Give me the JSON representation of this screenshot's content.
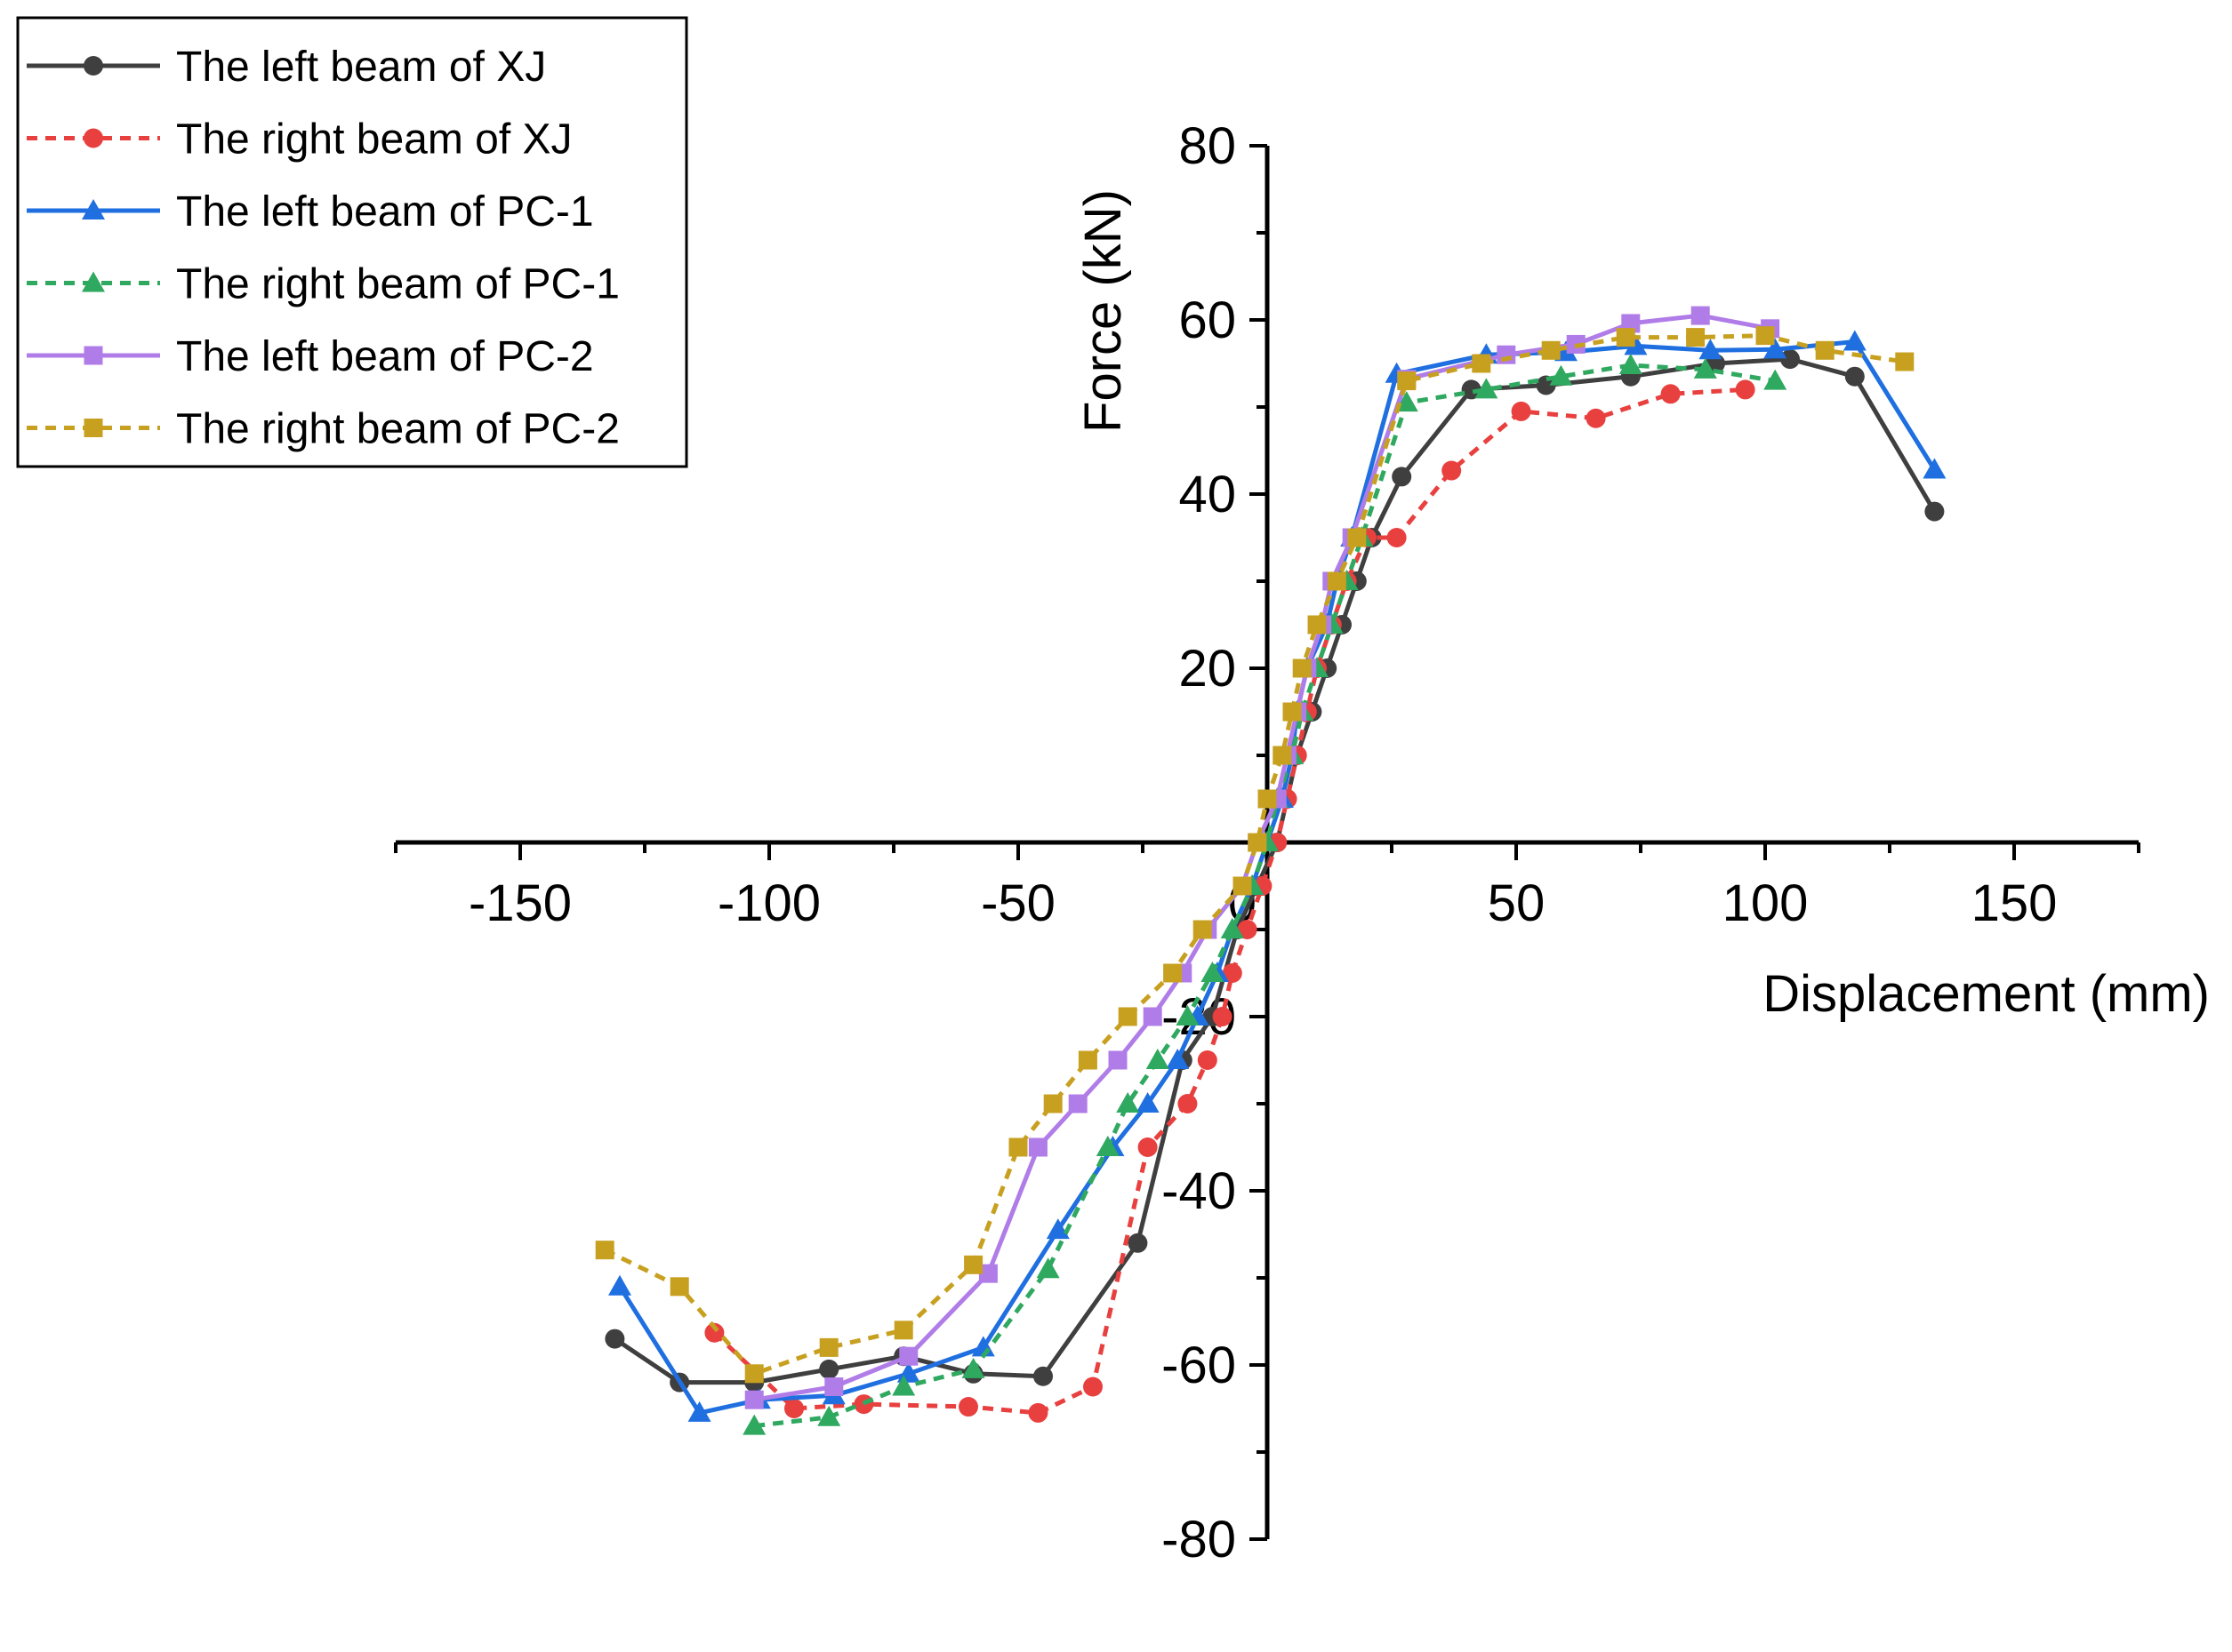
{
  "chart_data": {
    "type": "line",
    "title": "",
    "xlabel": "Displacement (mm)",
    "ylabel": "Force (kN)",
    "xlim": [
      -175,
      175
    ],
    "ylim": [
      -80,
      80
    ],
    "xticks": [
      -150,
      -100,
      -50,
      50,
      100,
      150
    ],
    "xtick_labels": [
      "-150",
      "-100",
      "-50",
      "50",
      "100",
      "150"
    ],
    "yticks": [
      -80,
      -60,
      -40,
      -20,
      20,
      40,
      60,
      80
    ],
    "ytick_labels": [
      "-80",
      "-60",
      "-40",
      "-20",
      "20",
      "40",
      "60",
      "80"
    ],
    "origin_label": "0",
    "legend_position": "top-left",
    "series": [
      {
        "name": "The left beam of XJ",
        "color": "#3f3f3f",
        "marker": "circle",
        "dashed": false,
        "points": [
          [
            -131,
            -57
          ],
          [
            -118,
            -62
          ],
          [
            -103,
            -62
          ],
          [
            -88,
            -60.5
          ],
          [
            -73,
            -59
          ],
          [
            -59,
            -61
          ],
          [
            -45,
            -61.3
          ],
          [
            -26,
            -46
          ],
          [
            -17,
            -25
          ],
          [
            -11,
            -20
          ],
          [
            -6,
            -10
          ],
          [
            -2,
            -5
          ],
          [
            2,
            0
          ],
          [
            4,
            5
          ],
          [
            6,
            10
          ],
          [
            9,
            15
          ],
          [
            12,
            20
          ],
          [
            15,
            25
          ],
          [
            18,
            30
          ],
          [
            21,
            35
          ],
          [
            27,
            42
          ],
          [
            41,
            52
          ],
          [
            56,
            52.5
          ],
          [
            73,
            53.5
          ],
          [
            90,
            55
          ],
          [
            105,
            55.5
          ],
          [
            118,
            53.5
          ],
          [
            134,
            38
          ]
        ]
      },
      {
        "name": "The right beam of XJ",
        "color": "#e8403f",
        "marker": "circle",
        "dashed": true,
        "points": [
          [
            -111,
            -56.3
          ],
          [
            -95,
            -65
          ],
          [
            -81,
            -64.5
          ],
          [
            -60,
            -64.8
          ],
          [
            -46,
            -65.5
          ],
          [
            -35,
            -62.5
          ],
          [
            -24,
            -35
          ],
          [
            -16,
            -30
          ],
          [
            -12,
            -25
          ],
          [
            -9,
            -20
          ],
          [
            -7,
            -15
          ],
          [
            -4,
            -10
          ],
          [
            -1,
            -5
          ],
          [
            2,
            0
          ],
          [
            4,
            5
          ],
          [
            6,
            10
          ],
          [
            8,
            15
          ],
          [
            10,
            20
          ],
          [
            13,
            25
          ],
          [
            16,
            30
          ],
          [
            20,
            35
          ],
          [
            26,
            35
          ],
          [
            37,
            42.7
          ],
          [
            51,
            49.5
          ],
          [
            66,
            48.7
          ],
          [
            81,
            51.5
          ],
          [
            96,
            52
          ]
        ]
      },
      {
        "name": "The left beam of PC-1",
        "color": "#1f6fe0",
        "marker": "triangle",
        "dashed": false,
        "points": [
          [
            -130,
            -51
          ],
          [
            -114,
            -65.5
          ],
          [
            -102,
            -64
          ],
          [
            -87,
            -63.5
          ],
          [
            -72,
            -61
          ],
          [
            -57,
            -58
          ],
          [
            -42,
            -44.5
          ],
          [
            -31,
            -35
          ],
          [
            -24,
            -30
          ],
          [
            -18,
            -25
          ],
          [
            -14,
            -20
          ],
          [
            -10,
            -15
          ],
          [
            -7,
            -10
          ],
          [
            -3,
            -5
          ],
          [
            0,
            0
          ],
          [
            3,
            5
          ],
          [
            5,
            10
          ],
          [
            6,
            15
          ],
          [
            8,
            20
          ],
          [
            12,
            25
          ],
          [
            14,
            30
          ],
          [
            17,
            35
          ],
          [
            26,
            53.8
          ],
          [
            44,
            56
          ],
          [
            60,
            56.3
          ],
          [
            74,
            57
          ],
          [
            89,
            56.5
          ],
          [
            102,
            56.6
          ],
          [
            118,
            57.5
          ],
          [
            134,
            42.8
          ]
        ]
      },
      {
        "name": "The right beam of PC-1",
        "color": "#2fa860",
        "marker": "triangle",
        "dashed": true,
        "points": [
          [
            -103,
            -67
          ],
          [
            -88,
            -66
          ],
          [
            -73,
            -62.5
          ],
          [
            -59,
            -60.5
          ],
          [
            -44,
            -49
          ],
          [
            -32,
            -35
          ],
          [
            -28,
            -30
          ],
          [
            -22,
            -25
          ],
          [
            -16,
            -20
          ],
          [
            -11,
            -15
          ],
          [
            -7,
            -10
          ],
          [
            -3,
            -5
          ],
          [
            0,
            0
          ],
          [
            2,
            5
          ],
          [
            5,
            10
          ],
          [
            7,
            15
          ],
          [
            10,
            20
          ],
          [
            13,
            25
          ],
          [
            16,
            30
          ],
          [
            19,
            35
          ],
          [
            28,
            50.5
          ],
          [
            44,
            52
          ],
          [
            59,
            53.5
          ],
          [
            73,
            54.8
          ],
          [
            88,
            54.3
          ],
          [
            102,
            53
          ]
        ]
      },
      {
        "name": "The left beam of PC-2",
        "color": "#b07ce8",
        "marker": "square",
        "dashed": false,
        "points": [
          [
            -103,
            -64
          ],
          [
            -87,
            -62.5
          ],
          [
            -72,
            -59
          ],
          [
            -56,
            -49.5
          ],
          [
            -46,
            -35
          ],
          [
            -38,
            -30
          ],
          [
            -30,
            -25
          ],
          [
            -23,
            -20
          ],
          [
            -17,
            -15
          ],
          [
            -12,
            -10
          ],
          [
            -5,
            -5
          ],
          [
            -2,
            0
          ],
          [
            2,
            5
          ],
          [
            4,
            10
          ],
          [
            6,
            15
          ],
          [
            8,
            20
          ],
          [
            11,
            25
          ],
          [
            13,
            30
          ],
          [
            17,
            35
          ],
          [
            28,
            53.2
          ],
          [
            48,
            56
          ],
          [
            62,
            57.2
          ],
          [
            73,
            59.6
          ],
          [
            87,
            60.5
          ],
          [
            101,
            59
          ]
        ]
      },
      {
        "name": "The right beam of PC-2",
        "color": "#c8a020",
        "marker": "square",
        "dashed": true,
        "points": [
          [
            -133,
            -46.8
          ],
          [
            -118,
            -51
          ],
          [
            -103,
            -61
          ],
          [
            -88,
            -58
          ],
          [
            -73,
            -56
          ],
          [
            -59,
            -48.5
          ],
          [
            -50,
            -35
          ],
          [
            -43,
            -30
          ],
          [
            -36,
            -25
          ],
          [
            -28,
            -20
          ],
          [
            -19,
            -15
          ],
          [
            -13,
            -10
          ],
          [
            -5,
            -5
          ],
          [
            -2,
            0
          ],
          [
            0,
            5
          ],
          [
            3,
            10
          ],
          [
            5,
            15
          ],
          [
            7,
            20
          ],
          [
            10,
            25
          ],
          [
            14,
            30
          ],
          [
            18,
            35
          ],
          [
            28,
            53
          ],
          [
            43,
            55
          ],
          [
            57,
            56.5
          ],
          [
            72,
            58
          ],
          [
            86,
            58
          ],
          [
            100,
            58.2
          ],
          [
            112,
            56.5
          ],
          [
            128,
            55.2
          ]
        ]
      }
    ]
  }
}
